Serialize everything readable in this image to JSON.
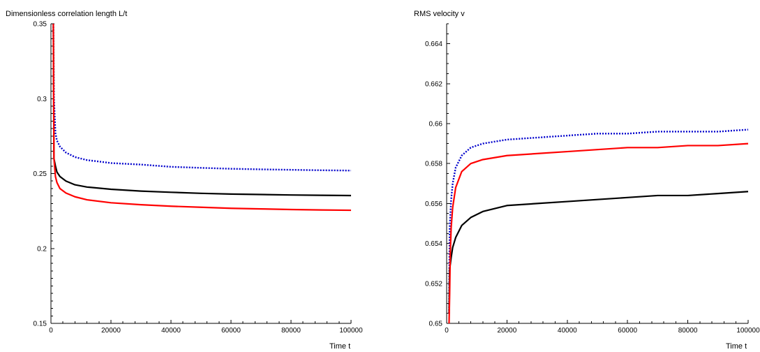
{
  "chart_data": [
    {
      "type": "line",
      "title": "Dimensionless correlation length L/t",
      "xlabel": "Time t",
      "ylabel": "",
      "xlim": [
        0,
        100000
      ],
      "ylim": [
        0.15,
        0.35
      ],
      "x_ticks": [
        0,
        20000,
        40000,
        60000,
        80000,
        100000
      ],
      "y_ticks": [
        0.15,
        0.2,
        0.25,
        0.3,
        0.35
      ],
      "grid": false,
      "series": [
        {
          "color": "#0000cc",
          "style": "dotted",
          "x": [
            800,
            1000,
            1500,
            2000,
            3000,
            5000,
            8000,
            12000,
            20000,
            30000,
            40000,
            50000,
            60000,
            70000,
            80000,
            90000,
            100000
          ],
          "y": [
            0.35,
            0.3,
            0.277,
            0.272,
            0.268,
            0.264,
            0.261,
            0.259,
            0.257,
            0.256,
            0.2545,
            0.2538,
            0.2532,
            0.2528,
            0.2525,
            0.2522,
            0.252
          ]
        },
        {
          "color": "#000000",
          "style": "solid",
          "x": [
            800,
            1000,
            1500,
            2000,
            3000,
            5000,
            8000,
            12000,
            20000,
            30000,
            40000,
            50000,
            60000,
            70000,
            80000,
            90000,
            100000
          ],
          "y": [
            0.35,
            0.26,
            0.255,
            0.251,
            0.248,
            0.245,
            0.2425,
            0.241,
            0.2395,
            0.2383,
            0.2375,
            0.2368,
            0.2363,
            0.236,
            0.2357,
            0.2355,
            0.2353
          ]
        },
        {
          "color": "#ff0000",
          "style": "solid",
          "x": [
            800,
            1000,
            1500,
            2000,
            3000,
            5000,
            8000,
            12000,
            20000,
            30000,
            40000,
            50000,
            60000,
            70000,
            80000,
            90000,
            100000
          ],
          "y": [
            0.35,
            0.26,
            0.248,
            0.244,
            0.24,
            0.237,
            0.2345,
            0.2325,
            0.2305,
            0.2292,
            0.2282,
            0.2275,
            0.2268,
            0.2264,
            0.226,
            0.2257,
            0.2255
          ]
        }
      ]
    },
    {
      "type": "line",
      "title": "RMS velocity v",
      "xlabel": "Time t",
      "ylabel": "",
      "xlim": [
        0,
        100000
      ],
      "ylim": [
        0.65,
        0.665
      ],
      "x_ticks": [
        0,
        20000,
        40000,
        60000,
        80000,
        100000
      ],
      "y_ticks": [
        0.65,
        0.652,
        0.654,
        0.656,
        0.658,
        0.66,
        0.662,
        0.664
      ],
      "grid": false,
      "series": [
        {
          "color": "#0000cc",
          "style": "dotted",
          "x": [
            800,
            1000,
            1500,
            2000,
            3000,
            5000,
            8000,
            12000,
            20000,
            30000,
            40000,
            50000,
            60000,
            70000,
            80000,
            90000,
            100000
          ],
          "y": [
            0.6505,
            0.6548,
            0.6562,
            0.657,
            0.6578,
            0.6584,
            0.6588,
            0.659,
            0.6592,
            0.6593,
            0.6594,
            0.6595,
            0.6595,
            0.6596,
            0.6596,
            0.6596,
            0.6597
          ]
        },
        {
          "color": "#000000",
          "style": "solid",
          "x": [
            800,
            1000,
            1500,
            2000,
            3000,
            5000,
            8000,
            12000,
            20000,
            30000,
            40000,
            50000,
            60000,
            70000,
            80000,
            90000,
            100000
          ],
          "y": [
            0.6505,
            0.6527,
            0.6533,
            0.6538,
            0.6543,
            0.6549,
            0.6553,
            0.6556,
            0.6559,
            0.656,
            0.6561,
            0.6562,
            0.6563,
            0.6564,
            0.6564,
            0.6565,
            0.6566
          ]
        },
        {
          "color": "#ff0000",
          "style": "solid",
          "x": [
            800,
            1000,
            1200,
            1500,
            2000,
            3000,
            5000,
            8000,
            12000,
            20000,
            30000,
            40000,
            50000,
            60000,
            70000,
            80000,
            90000,
            100000
          ],
          "y": [
            0.65,
            0.6515,
            0.6535,
            0.6548,
            0.6558,
            0.6568,
            0.6576,
            0.658,
            0.6582,
            0.6584,
            0.6585,
            0.6586,
            0.6587,
            0.6588,
            0.6588,
            0.6589,
            0.6589,
            0.659
          ]
        }
      ]
    }
  ]
}
